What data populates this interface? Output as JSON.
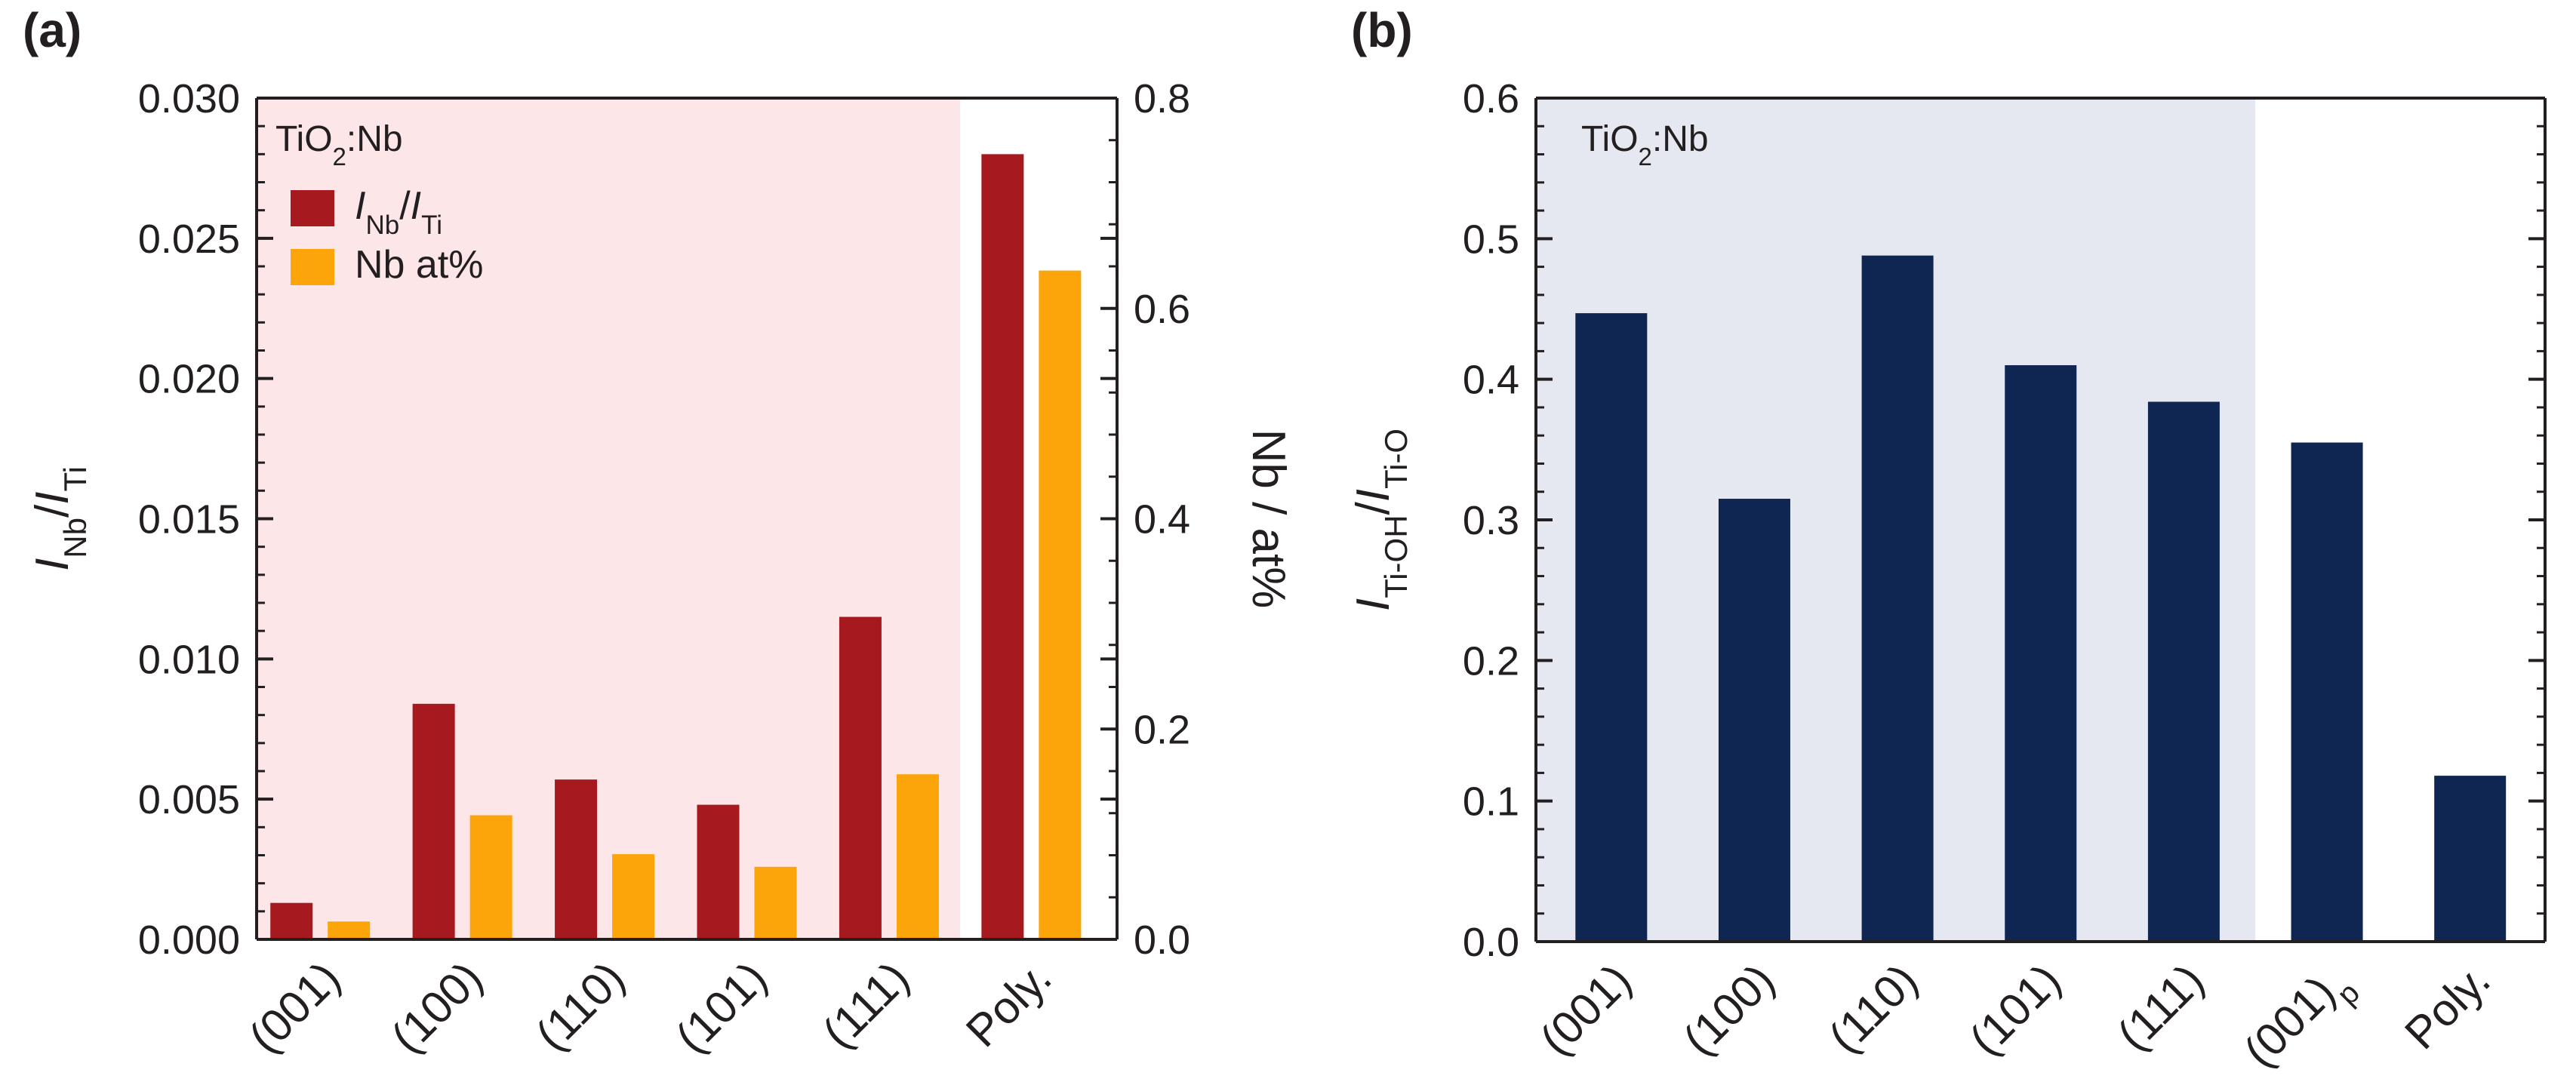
{
  "chart_data": [
    {
      "type": "bar",
      "panel_label": "(a)",
      "annotation": {
        "main": "TiO",
        "sub": "2",
        "rest": ":Nb"
      },
      "categories": [
        "(001)",
        "(100)",
        "(110)",
        "(101)",
        "(111)",
        "Poly."
      ],
      "series": [
        {
          "name": "I_Nb/I_Ti",
          "axis": "left",
          "color": "#a6191e",
          "values": [
            0.0013,
            0.0084,
            0.0057,
            0.0048,
            0.0115,
            0.028
          ]
        },
        {
          "name": "Nb at%",
          "axis": "right",
          "color": "#fca50a",
          "values": [
            0.017,
            0.118,
            0.081,
            0.069,
            0.157,
            0.636
          ]
        }
      ],
      "legend": [
        {
          "series": 0,
          "parts": [
            {
              "t": "I",
              "style": "italic"
            },
            {
              "t": "Nb",
              "style": "sub"
            },
            {
              "t": "/"
            },
            {
              "t": "I",
              "style": "italic"
            },
            {
              "t": "Ti",
              "style": "sub"
            }
          ]
        },
        {
          "series": 1,
          "parts": [
            {
              "t": "Nb at%"
            }
          ]
        }
      ],
      "legend_position": "top-left",
      "ylabel_left": {
        "parts": [
          {
            "t": "I",
            "style": "italic"
          },
          {
            "t": "Nb",
            "style": "sub"
          },
          {
            "t": "/"
          },
          {
            "t": "I",
            "style": "italic"
          },
          {
            "t": "Ti",
            "style": "sub"
          }
        ]
      },
      "ylabel_right": "Nb / at%",
      "ylim_left": [
        0,
        0.03
      ],
      "ylim_right": [
        0,
        0.8
      ],
      "yticks_left": [
        "0.000",
        "0.005",
        "0.010",
        "0.015",
        "0.020",
        "0.025",
        "0.030"
      ],
      "yticks_right": [
        "0.0",
        "0.2",
        "0.4",
        "0.6",
        "0.8"
      ],
      "shaded_background": {
        "color": "#fde6e8",
        "from_category": 0,
        "to_category": 4
      },
      "grid": false
    },
    {
      "type": "bar",
      "panel_label": "(b)",
      "annotation": {
        "main": "TiO",
        "sub": "2",
        "rest": ":Nb"
      },
      "categories": [
        "(001)",
        "(100)",
        "(110)",
        "(101)",
        "(111)",
        "(001)p",
        "Poly."
      ],
      "category_labels": [
        {
          "main": "(001)"
        },
        {
          "main": "(100)"
        },
        {
          "main": "(110)"
        },
        {
          "main": "(101)"
        },
        {
          "main": "(111)"
        },
        {
          "main": "(001)",
          "sub": "p"
        },
        {
          "main": "Poly."
        }
      ],
      "series": [
        {
          "name": "",
          "color": "#0f2552",
          "values": [
            0.447,
            0.315,
            0.488,
            0.41,
            0.384,
            0.355,
            0.118
          ]
        }
      ],
      "ylabel": {
        "parts": [
          {
            "t": "I",
            "style": "italic"
          },
          {
            "t": "Ti-OH",
            "style": "sub"
          },
          {
            "t": "/"
          },
          {
            "t": "I",
            "style": "italic"
          },
          {
            "t": "Ti-O",
            "style": "sub"
          }
        ]
      },
      "ylim": [
        0,
        0.6
      ],
      "yticks": [
        "0.0",
        "0.1",
        "0.2",
        "0.3",
        "0.4",
        "0.5",
        "0.6"
      ],
      "shaded_background": {
        "color": "#e6e8f1",
        "from_category": 0,
        "to_category": 4
      },
      "grid": false
    }
  ]
}
